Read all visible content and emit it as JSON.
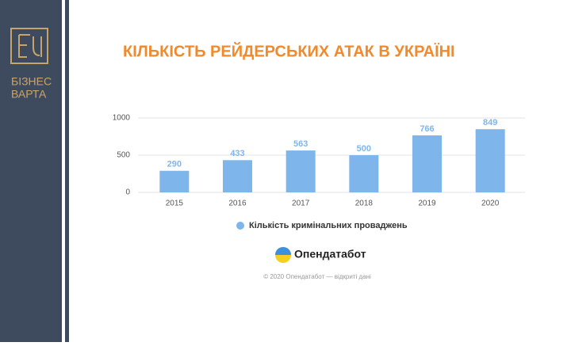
{
  "brand": {
    "lines": [
      "БІЗНЕС",
      "ВАРТА"
    ]
  },
  "chart_data": {
    "type": "bar",
    "title": "КІЛЬКІСТЬ РЕЙДЕРСЬКИХ АТАК В УКРАЇНІ",
    "categories": [
      "2015",
      "2016",
      "2017",
      "2018",
      "2019",
      "2020"
    ],
    "series": [
      {
        "name": "Кількість кримінальних проваджень",
        "color": "#7eb6ec",
        "values": [
          290,
          433,
          563,
          500,
          766,
          849
        ]
      }
    ],
    "ylim": [
      0,
      1000
    ],
    "yticks": [
      0,
      500,
      1000
    ],
    "grid": true,
    "legend": "bottom"
  },
  "source": {
    "logo_text": "Опендатабот",
    "credit": "© 2020 Опендатабот — відкриті дані"
  }
}
